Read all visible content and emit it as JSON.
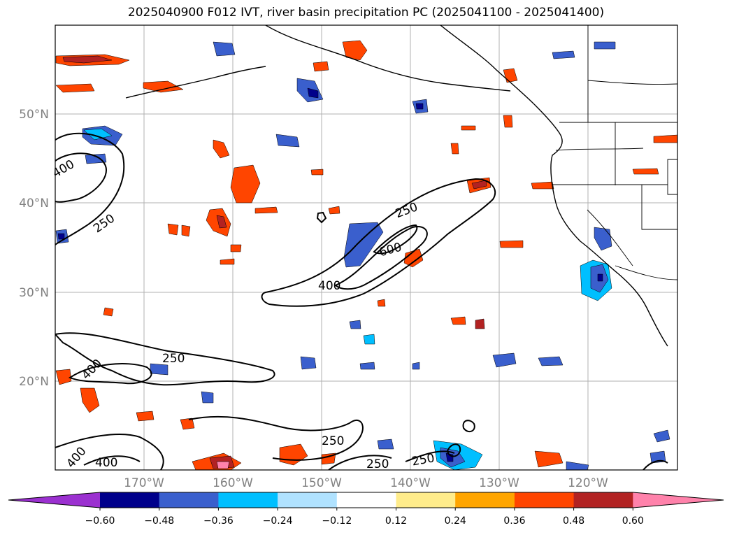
{
  "title": "2025040900 F012 IVT, river basin precipitation PC (2025041100 - 2025041400)",
  "lat_labels": [
    "50°N",
    "40°N",
    "30°N",
    "20°N"
  ],
  "lon_labels": [
    "170°W",
    "160°W",
    "150°W",
    "140°W",
    "130°W",
    "120°W"
  ],
  "contour_labels": [
    {
      "text": "400",
      "id": "w400a"
    },
    {
      "text": "250",
      "id": "w250a"
    },
    {
      "text": "250",
      "id": "c250a"
    },
    {
      "text": "600",
      "id": "c600"
    },
    {
      "text": "400",
      "id": "c400"
    },
    {
      "text": "400",
      "id": "s400a"
    },
    {
      "text": "250",
      "id": "s250a"
    },
    {
      "text": "400",
      "id": "s400b"
    },
    {
      "text": "400",
      "id": "s400c"
    },
    {
      "text": "250",
      "id": "s250b"
    },
    {
      "text": "250",
      "id": "s250c"
    },
    {
      "text": "250",
      "id": "s250d"
    }
  ],
  "colorbar": {
    "colors": [
      "#9b30d0",
      "#00008b",
      "#3a5fcd",
      "#00bfff",
      "#b0e2ff",
      "#ffffff",
      "#ffec8b",
      "#ffa500",
      "#ff4500",
      "#b22222",
      "#ff82ab"
    ],
    "tick_labels": [
      "−0.60",
      "−0.48",
      "−0.36",
      "−0.24",
      "−0.12",
      "0.12",
      "0.24",
      "0.36",
      "0.48",
      "0.60"
    ]
  }
}
